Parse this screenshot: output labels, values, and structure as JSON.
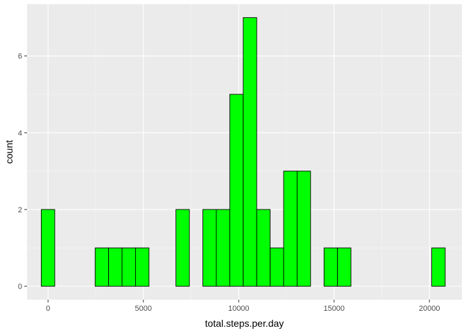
{
  "chart_data": {
    "type": "bar",
    "subtype": "histogram",
    "xlabel": "total.steps.per.day",
    "ylabel": "count",
    "xlim": [
      -1100,
      21700
    ],
    "ylim": [
      -0.35,
      7.35
    ],
    "x_ticks": [
      0,
      5000,
      10000,
      15000,
      20000
    ],
    "y_ticks": [
      0,
      2,
      4,
      6
    ],
    "bin_width": 706,
    "bins": [
      {
        "x0": -353,
        "x1": 353,
        "count": 2
      },
      {
        "x0": 353,
        "x1": 1059,
        "count": 0
      },
      {
        "x0": 1059,
        "x1": 1765,
        "count": 0
      },
      {
        "x0": 1765,
        "x1": 2471,
        "count": 0
      },
      {
        "x0": 2471,
        "x1": 3177,
        "count": 1
      },
      {
        "x0": 3177,
        "x1": 3883,
        "count": 1
      },
      {
        "x0": 3883,
        "x1": 4589,
        "count": 1
      },
      {
        "x0": 4589,
        "x1": 5295,
        "count": 1
      },
      {
        "x0": 5295,
        "x1": 6001,
        "count": 0
      },
      {
        "x0": 6001,
        "x1": 6707,
        "count": 0
      },
      {
        "x0": 6707,
        "x1": 7413,
        "count": 2
      },
      {
        "x0": 7413,
        "x1": 8119,
        "count": 0
      },
      {
        "x0": 8119,
        "x1": 8825,
        "count": 2
      },
      {
        "x0": 8825,
        "x1": 9531,
        "count": 2
      },
      {
        "x0": 9531,
        "x1": 10237,
        "count": 5
      },
      {
        "x0": 10237,
        "x1": 10943,
        "count": 7
      },
      {
        "x0": 10943,
        "x1": 11649,
        "count": 2
      },
      {
        "x0": 11649,
        "x1": 12355,
        "count": 1
      },
      {
        "x0": 12355,
        "x1": 13061,
        "count": 3
      },
      {
        "x0": 13061,
        "x1": 13767,
        "count": 3
      },
      {
        "x0": 13767,
        "x1": 14473,
        "count": 0
      },
      {
        "x0": 14473,
        "x1": 15179,
        "count": 1
      },
      {
        "x0": 15179,
        "x1": 15885,
        "count": 1
      },
      {
        "x0": 15885,
        "x1": 16591,
        "count": 0
      },
      {
        "x0": 16591,
        "x1": 17297,
        "count": 0
      },
      {
        "x0": 17297,
        "x1": 18003,
        "count": 0
      },
      {
        "x0": 18003,
        "x1": 18709,
        "count": 0
      },
      {
        "x0": 18709,
        "x1": 19415,
        "count": 0
      },
      {
        "x0": 19415,
        "x1": 20121,
        "count": 0
      },
      {
        "x0": 20121,
        "x1": 20827,
        "count": 1
      }
    ],
    "grid": true,
    "colors": {
      "bar_fill": "#00ff00",
      "bar_stroke": "#000000",
      "panel_bg": "#ebebeb",
      "grid_major": "#ffffff",
      "grid_minor": "#f5f5f5",
      "tick_mark": "#333333"
    }
  }
}
